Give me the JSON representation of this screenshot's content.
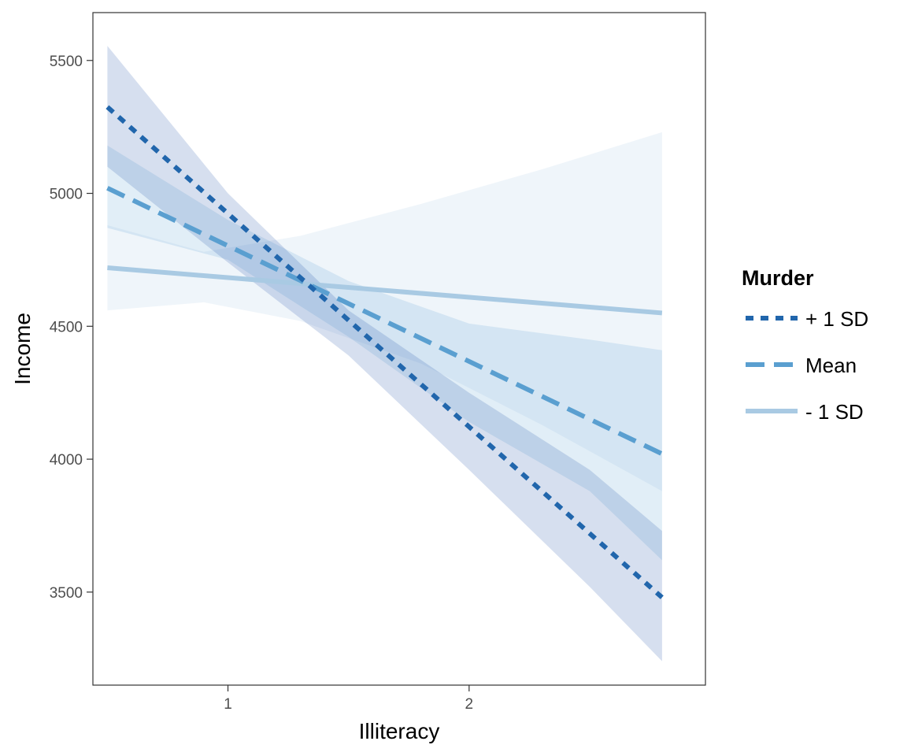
{
  "chart_data": {
    "type": "line",
    "title": "",
    "xlabel": "Illiteracy",
    "ylabel": "Income",
    "xlim": [
      0.44,
      2.98
    ],
    "ylim": [
      3150,
      5680
    ],
    "xticks": [
      1,
      2
    ],
    "yticks": [
      3500,
      4000,
      4500,
      5000,
      5500
    ],
    "grid": false,
    "legend_title": "Murder",
    "legend_position": "right",
    "series": [
      {
        "name": "+ 1 SD",
        "color": "#2166ac",
        "dash": "dotted",
        "x": [
          0.5,
          2.8
        ],
        "y": [
          5325,
          3480
        ],
        "ribbon_color": "#1a4ea8",
        "ribbon_opacity": 0.18,
        "ribbon": {
          "x": [
            0.5,
            1.0,
            1.5,
            2.0,
            2.5,
            2.8
          ],
          "lower": [
            5100,
            4740,
            4390,
            3960,
            3520,
            3240
          ],
          "upper": [
            5555,
            5000,
            4560,
            4250,
            3960,
            3730
          ]
        }
      },
      {
        "name": "Mean",
        "color": "#5a9fd0",
        "dash": "dashed",
        "x": [
          0.5,
          2.8
        ],
        "y": [
          5020,
          4020
        ],
        "ribbon_color": "#5a9fd0",
        "ribbon_opacity": 0.18,
        "ribbon": {
          "x": [
            0.5,
            1.0,
            1.5,
            2.0,
            2.5,
            2.8
          ],
          "lower": [
            4870,
            4750,
            4460,
            4140,
            3880,
            3620
          ],
          "upper": [
            5180,
            4900,
            4670,
            4510,
            4450,
            4410
          ]
        }
      },
      {
        "name": "- 1 SD",
        "color": "#a9cae3",
        "dash": "solid",
        "x": [
          0.5,
          2.8
        ],
        "y": [
          4720,
          4550
        ],
        "ribbon_color": "#b7d2ea",
        "ribbon_opacity": 0.22,
        "ribbon": {
          "x": [
            0.5,
            0.9,
            1.3,
            1.8,
            2.3,
            2.8
          ],
          "lower": [
            4560,
            4590,
            4520,
            4360,
            4130,
            3880
          ],
          "upper": [
            4880,
            4780,
            4840,
            4960,
            5090,
            5230
          ]
        }
      }
    ]
  }
}
